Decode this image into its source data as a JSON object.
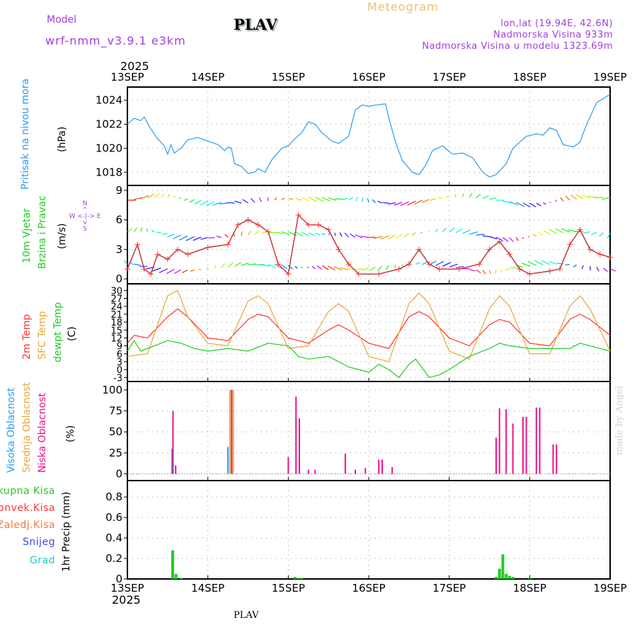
{
  "header": {
    "title": "Meteogram",
    "model_label": "Model",
    "model": "wrf-nmm_v3.9.1 e3km",
    "station": "PLAV",
    "lonlat": "lon,lat (19.94E, 42.6N)",
    "elev": "Nadmorska Visina 933m",
    "model_elev": "Nadmorska Visina u modelu 1323.69m",
    "year": "2025",
    "footer_station": "PLAV",
    "credit": "made by Angel"
  },
  "colors": {
    "pressure": "#2a9df4",
    "wind": "#ff3333",
    "temp2m": "#ff3333",
    "sfc": "#e8a838",
    "dewpt": "#22cc22",
    "high": "#2a9df4",
    "mid": "#e8a838",
    "low": "#ee1188",
    "precip": "#22cc22",
    "purple": "#a040e0"
  },
  "chart_data": [
    {
      "type": "line",
      "title": "Pritisak na nivou mora",
      "ylabel": "(hPa)",
      "ylim": [
        1016.9,
        1025.1
      ],
      "yticks": [
        1018,
        1020,
        1022,
        1024
      ],
      "xticks": [
        "13SEP",
        "14SEP",
        "15SEP",
        "16SEP",
        "17SEP",
        "18SEP",
        "19SEP"
      ],
      "xunit": "hours from 13SEP 00",
      "xlim": [
        0,
        144
      ],
      "series": [
        {
          "name": "pressure",
          "points": [
            [
              0,
              1022
            ],
            [
              2,
              1022.5
            ],
            [
              4,
              1022.3
            ],
            [
              5,
              1022.6
            ],
            [
              7,
              1021.6
            ],
            [
              9,
              1020.8
            ],
            [
              11,
              1020.2
            ],
            [
              12,
              1019.5
            ],
            [
              13,
              1020.3
            ],
            [
              14,
              1019.6
            ],
            [
              16,
              1020.0
            ],
            [
              18,
              1020.7
            ],
            [
              21,
              1020.9
            ],
            [
              24,
              1020.6
            ],
            [
              27,
              1020.3
            ],
            [
              29,
              1019.8
            ],
            [
              30,
              1020.1
            ],
            [
              31,
              1020.0
            ],
            [
              32,
              1018.7
            ],
            [
              34,
              1018.5
            ],
            [
              36,
              1017.9
            ],
            [
              38,
              1018.0
            ],
            [
              39,
              1018.3
            ],
            [
              41,
              1018.0
            ],
            [
              43,
              1019.0
            ],
            [
              46,
              1020.0
            ],
            [
              48,
              1020.2
            ],
            [
              50,
              1020.8
            ],
            [
              52,
              1021.3
            ],
            [
              54,
              1022.2
            ],
            [
              56,
              1022.0
            ],
            [
              58,
              1021.3
            ],
            [
              61,
              1020.6
            ],
            [
              63,
              1020.4
            ],
            [
              66,
              1021.0
            ],
            [
              68,
              1023.2
            ],
            [
              70,
              1023.6
            ],
            [
              72,
              1023.5
            ],
            [
              74,
              1023.6
            ],
            [
              77,
              1023.7
            ],
            [
              78,
              1022.5
            ],
            [
              80,
              1020.5
            ],
            [
              82,
              1019.0
            ],
            [
              85,
              1018.0
            ],
            [
              87,
              1017.8
            ],
            [
              89,
              1018.6
            ],
            [
              91,
              1019.8
            ],
            [
              94,
              1020.2
            ],
            [
              97,
              1019.5
            ],
            [
              100,
              1019.6
            ],
            [
              103,
              1019.2
            ],
            [
              106,
              1018.0
            ],
            [
              108,
              1017.6
            ],
            [
              110,
              1017.8
            ],
            [
              113,
              1018.7
            ],
            [
              115,
              1020.0
            ],
            [
              119,
              1021.0
            ],
            [
              122,
              1021.2
            ],
            [
              124,
              1021.1
            ],
            [
              126,
              1021.7
            ],
            [
              128,
              1021.5
            ],
            [
              130,
              1020.3
            ],
            [
              133,
              1020.1
            ],
            [
              135,
              1020.5
            ],
            [
              137,
              1022.0
            ],
            [
              140,
              1023.8
            ],
            [
              144,
              1024.5
            ]
          ]
        }
      ]
    },
    {
      "type": "line",
      "title": "10m Vjetar",
      "subtitle": "Brzina i Pravac",
      "ylabel": "(m/s)",
      "ylim": [
        -0.5,
        9.5
      ],
      "yticks": [
        0,
        3,
        6,
        9
      ],
      "compass": {
        "n": "N",
        "s": "S",
        "w": "W",
        "e": "E"
      },
      "series": [
        {
          "name": "wind speed",
          "points": [
            [
              0,
              1.0
            ],
            [
              3,
              3.5
            ],
            [
              5,
              1.0
            ],
            [
              7,
              0.5
            ],
            [
              9,
              2.5
            ],
            [
              12,
              2.0
            ],
            [
              15,
              3.0
            ],
            [
              18,
              2.5
            ],
            [
              24,
              3.2
            ],
            [
              30,
              3.5
            ],
            [
              33,
              5.5
            ],
            [
              36,
              6.0
            ],
            [
              39,
              5.5
            ],
            [
              42,
              4.8
            ],
            [
              45,
              1.5
            ],
            [
              48,
              0.5
            ],
            [
              51,
              6.5
            ],
            [
              54,
              5.5
            ],
            [
              57,
              5.5
            ],
            [
              60,
              5.0
            ],
            [
              63,
              3.0
            ],
            [
              66,
              1.5
            ],
            [
              69,
              0.5
            ],
            [
              75,
              0.5
            ],
            [
              81,
              1.0
            ],
            [
              84,
              1.5
            ],
            [
              87,
              3.0
            ],
            [
              90,
              1.5
            ],
            [
              93,
              1.0
            ],
            [
              99,
              1.0
            ],
            [
              105,
              1.5
            ],
            [
              108,
              3.0
            ],
            [
              111,
              3.8
            ],
            [
              114,
              2.5
            ],
            [
              117,
              1.0
            ],
            [
              120,
              0.5
            ],
            [
              126,
              0.8
            ],
            [
              129,
              1.0
            ],
            [
              132,
              3.5
            ],
            [
              135,
              5.0
            ],
            [
              138,
              3.0
            ],
            [
              141,
              2.5
            ],
            [
              144,
              2.2
            ]
          ]
        }
      ]
    },
    {
      "type": "line",
      "title": "2m Temp / SFC Temp / dewpt Temp",
      "labels": [
        "2m Temp",
        "SFC Temp",
        "dewpt Temp"
      ],
      "ylabel": "(C)",
      "ylim": [
        -4.5,
        32.5
      ],
      "yticks": [
        -3,
        0,
        3,
        6,
        9,
        12,
        15,
        18,
        21,
        24,
        27,
        30
      ],
      "series": [
        {
          "name": "2m Temp",
          "points": [
            [
              0,
              10
            ],
            [
              2,
              13
            ],
            [
              6,
              12
            ],
            [
              12,
              20
            ],
            [
              15,
              23
            ],
            [
              18,
              20
            ],
            [
              24,
              12
            ],
            [
              30,
              11
            ],
            [
              36,
              19
            ],
            [
              39,
              21
            ],
            [
              42,
              20
            ],
            [
              48,
              12
            ],
            [
              54,
              10
            ],
            [
              60,
              15
            ],
            [
              63,
              17
            ],
            [
              66,
              15
            ],
            [
              72,
              10
            ],
            [
              78,
              8
            ],
            [
              84,
              20
            ],
            [
              87,
              22
            ],
            [
              90,
              20
            ],
            [
              96,
              12
            ],
            [
              102,
              9
            ],
            [
              108,
              17
            ],
            [
              111,
              19
            ],
            [
              114,
              18
            ],
            [
              120,
              10
            ],
            [
              126,
              9
            ],
            [
              132,
              19
            ],
            [
              135,
              21
            ],
            [
              138,
              19
            ],
            [
              144,
              13
            ]
          ]
        },
        {
          "name": "SFC Temp",
          "points": [
            [
              0,
              5
            ],
            [
              6,
              6
            ],
            [
              12,
              28
            ],
            [
              15,
              30
            ],
            [
              18,
              20
            ],
            [
              24,
              10
            ],
            [
              30,
              9
            ],
            [
              36,
              26
            ],
            [
              39,
              28
            ],
            [
              42,
              25
            ],
            [
              48,
              8
            ],
            [
              54,
              9
            ],
            [
              60,
              22
            ],
            [
              63,
              25
            ],
            [
              66,
              22
            ],
            [
              72,
              5
            ],
            [
              78,
              3
            ],
            [
              84,
              25
            ],
            [
              87,
              29
            ],
            [
              90,
              25
            ],
            [
              96,
              7
            ],
            [
              102,
              4
            ],
            [
              108,
              23
            ],
            [
              111,
              28
            ],
            [
              114,
              24
            ],
            [
              120,
              6
            ],
            [
              126,
              6
            ],
            [
              132,
              24
            ],
            [
              135,
              28
            ],
            [
              138,
              23
            ],
            [
              144,
              7
            ]
          ]
        },
        {
          "name": "dewpt Temp",
          "points": [
            [
              0,
              7
            ],
            [
              2,
              11
            ],
            [
              4,
              7
            ],
            [
              8,
              9
            ],
            [
              12,
              11
            ],
            [
              16,
              10
            ],
            [
              20,
              8
            ],
            [
              24,
              7
            ],
            [
              30,
              8
            ],
            [
              36,
              7
            ],
            [
              42,
              10
            ],
            [
              48,
              9
            ],
            [
              51,
              5
            ],
            [
              54,
              4
            ],
            [
              60,
              5
            ],
            [
              66,
              1
            ],
            [
              72,
              -1
            ],
            [
              75,
              2
            ],
            [
              78,
              0
            ],
            [
              81,
              -3
            ],
            [
              84,
              2
            ],
            [
              86,
              4
            ],
            [
              90,
              -3
            ],
            [
              93,
              -2
            ],
            [
              96,
              0
            ],
            [
              102,
              5
            ],
            [
              108,
              8
            ],
            [
              111,
              10
            ],
            [
              114,
              9
            ],
            [
              120,
              8
            ],
            [
              126,
              8
            ],
            [
              132,
              8
            ],
            [
              135,
              10
            ],
            [
              138,
              9
            ],
            [
              144,
              7
            ]
          ]
        }
      ]
    },
    {
      "type": "bar",
      "title": "Oblacnost",
      "labels": [
        "Visoka Oblacnost",
        "Srednja Oblacnost",
        "Niska Oblacnost"
      ],
      "ylabel": "(%)",
      "ylim": [
        -8,
        110
      ],
      "yticks": [
        0,
        25,
        50,
        75,
        100
      ],
      "series": [
        {
          "name": "high",
          "points": [
            [
              13.3,
              30
            ],
            [
              30,
              32
            ]
          ]
        },
        {
          "name": "mid",
          "points": [
            [
              30.6,
              100
            ],
            [
              31.6,
              100
            ]
          ]
        },
        {
          "name": "low",
          "points": [
            [
              13.6,
              75
            ],
            [
              14.4,
              10
            ],
            [
              31.1,
              100
            ],
            [
              48,
              20
            ],
            [
              50.3,
              92
            ],
            [
              51.3,
              66
            ],
            [
              54,
              5
            ],
            [
              56,
              5
            ],
            [
              65,
              24
            ],
            [
              68,
              5
            ],
            [
              71,
              7
            ],
            [
              75,
              17
            ],
            [
              76,
              17
            ],
            [
              79,
              8
            ],
            [
              110,
              43
            ],
            [
              111,
              78
            ],
            [
              113,
              77
            ],
            [
              115,
              60
            ],
            [
              118,
              68
            ],
            [
              119,
              68
            ],
            [
              122,
              79
            ],
            [
              123,
              79
            ],
            [
              127,
              35
            ],
            [
              128,
              35
            ]
          ]
        }
      ]
    },
    {
      "type": "bar",
      "title": "1hr Precip",
      "labels": [
        "Ukupna Kisa",
        "Konvek.Kisa",
        "Zaledj.Kisa",
        "Snijeg",
        "Grad"
      ],
      "ylabel": "1hr Precip (mm)",
      "ylim": [
        0,
        0.96
      ],
      "yticks": [
        0,
        0.2,
        0.4,
        0.6,
        0.8
      ],
      "yticklabels": [
        "0",
        "0.2",
        "0.4",
        "0.6",
        "0.8"
      ],
      "series": [
        {
          "name": "Ukupna Kisa",
          "points": [
            [
              13.5,
              0.28
            ],
            [
              14.5,
              0.05
            ],
            [
              16,
              0.01
            ],
            [
              50,
              0.02
            ],
            [
              51,
              0.01
            ],
            [
              52,
              0.01
            ],
            [
              110,
              0.02
            ],
            [
              111,
              0.1
            ],
            [
              112,
              0.24
            ],
            [
              113,
              0.05
            ],
            [
              114,
              0.03
            ],
            [
              115,
              0.02
            ],
            [
              120,
              0.01
            ]
          ]
        }
      ]
    }
  ]
}
